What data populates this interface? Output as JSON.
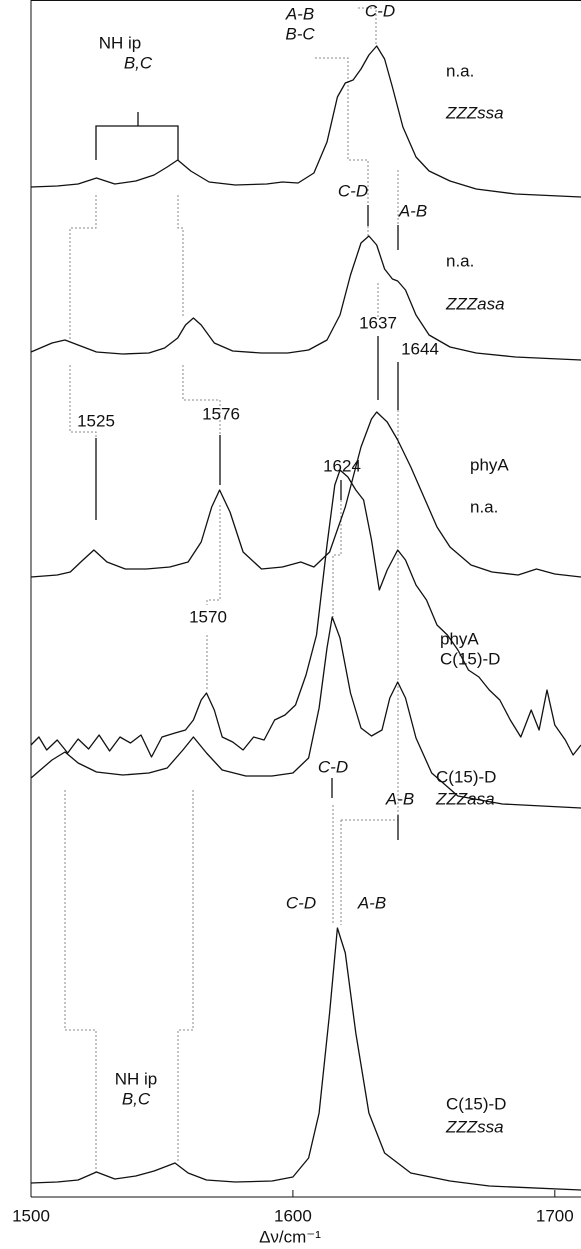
{
  "chart_data": {
    "type": "line",
    "x_label": "Δν/cm⁻¹",
    "xlim": [
      1500,
      1710
    ],
    "xticks": [
      1500,
      1600,
      1700
    ],
    "color": "#111111",
    "series": [
      {
        "labels": [
          "n.a.",
          "ZZZssa"
        ],
        "x": [
          1500,
          1510,
          1518,
          1525,
          1532,
          1540,
          1547,
          1552,
          1556,
          1561,
          1568,
          1578,
          1590,
          1596,
          1602,
          1608,
          1613,
          1617,
          1620,
          1623,
          1626,
          1629,
          1632,
          1635,
          1638,
          1642,
          1647,
          1652,
          1660,
          1670,
          1685,
          1710
        ],
        "values": [
          0,
          1,
          3,
          9,
          3,
          6,
          12,
          20,
          27,
          16,
          5,
          2,
          3,
          5,
          4,
          14,
          45,
          90,
          104,
          107,
          118,
          132,
          141,
          128,
          100,
          60,
          30,
          16,
          6,
          -2,
          -7,
          -10
        ]
      },
      {
        "labels": [
          "n.a.",
          "ZZZasa"
        ],
        "x": [
          1500,
          1508,
          1513,
          1518,
          1525,
          1535,
          1545,
          1551,
          1556,
          1559,
          1562,
          1565,
          1570,
          1577,
          1588,
          1598,
          1606,
          1613,
          1618,
          1622,
          1626,
          1629,
          1632,
          1635,
          1638,
          1640,
          1643,
          1647,
          1652,
          1660,
          1670,
          1685,
          1710
        ],
        "values": [
          3,
          12,
          15,
          10,
          3,
          1,
          2,
          7,
          17,
          30,
          37,
          30,
          12,
          4,
          2,
          2,
          5,
          15,
          40,
          80,
          112,
          119,
          110,
          86,
          76,
          74,
          65,
          40,
          20,
          8,
          2,
          -2,
          -5
        ]
      },
      {
        "labels": [
          "phyA",
          "n.a."
        ],
        "x": [
          1500,
          1510,
          1515,
          1519,
          1524,
          1529,
          1536,
          1544,
          1553,
          1560,
          1565,
          1569,
          1572,
          1576,
          1581,
          1588,
          1596,
          1603,
          1608,
          1614,
          1620,
          1626,
          1630,
          1632,
          1636,
          1640,
          1645,
          1650,
          1655,
          1660,
          1668,
          1676,
          1686,
          1693,
          1700,
          1710
        ],
        "values": [
          0,
          2,
          5,
          15,
          27,
          15,
          8,
          8,
          10,
          15,
          35,
          70,
          87,
          65,
          25,
          8,
          10,
          15,
          10,
          25,
          70,
          130,
          158,
          165,
          155,
          137,
          110,
          80,
          50,
          30,
          12,
          5,
          2,
          8,
          3,
          0
        ]
      },
      {
        "labels": [
          "phyA",
          "C(15)-D"
        ],
        "x": [
          1500,
          1503,
          1506,
          1510,
          1514,
          1518,
          1522,
          1526,
          1530,
          1534,
          1538,
          1542,
          1546,
          1550,
          1555,
          1559,
          1562,
          1565,
          1567,
          1570,
          1573,
          1577,
          1581,
          1585,
          1589,
          1593,
          1597,
          1601,
          1605,
          1609,
          1613,
          1616,
          1618,
          1621,
          1624,
          1627,
          1630,
          1633,
          1636,
          1640,
          1643,
          1647,
          1651,
          1655,
          1659,
          1663,
          1667,
          1671,
          1675,
          1679,
          1683,
          1687,
          1691,
          1694,
          1697,
          1700,
          1704,
          1707,
          1710
        ],
        "values": [
          0,
          8,
          -5,
          5,
          -8,
          6,
          -4,
          10,
          -6,
          8,
          2,
          10,
          -12,
          8,
          12,
          15,
          25,
          45,
          52,
          35,
          8,
          3,
          -5,
          8,
          5,
          25,
          30,
          40,
          70,
          110,
          200,
          260,
          275,
          268,
          255,
          245,
          205,
          155,
          175,
          195,
          185,
          160,
          145,
          120,
          110,
          95,
          75,
          68,
          55,
          45,
          25,
          8,
          35,
          15,
          55,
          20,
          5,
          -10,
          0
        ]
      },
      {
        "labels": [
          "C(15)-D",
          "ZZZasa"
        ],
        "x": [
          1500,
          1508,
          1513,
          1518,
          1525,
          1535,
          1545,
          1552,
          1558,
          1562,
          1567,
          1573,
          1582,
          1592,
          1600,
          1606,
          1610,
          1613,
          1615,
          1618,
          1622,
          1626,
          1630,
          1634,
          1637,
          1640,
          1643,
          1647,
          1653,
          1663,
          1680,
          1710
        ],
        "values": [
          0,
          18,
          26,
          15,
          6,
          3,
          5,
          10,
          28,
          41,
          25,
          8,
          2,
          2,
          5,
          20,
          70,
          130,
          161,
          140,
          85,
          50,
          42,
          48,
          80,
          96,
          80,
          40,
          5,
          -18,
          -26,
          -30
        ]
      },
      {
        "labels": [
          "C(15)-D",
          "ZZZssa"
        ],
        "x": [
          1500,
          1510,
          1518,
          1525,
          1532,
          1540,
          1547,
          1551,
          1555,
          1560,
          1567,
          1578,
          1592,
          1600,
          1606,
          1610,
          1614,
          1617,
          1620,
          1624,
          1629,
          1635,
          1645,
          1660,
          1675,
          1710
        ],
        "values": [
          0,
          1,
          3,
          11,
          4,
          7,
          12,
          16,
          20,
          10,
          3,
          1,
          2,
          6,
          25,
          70,
          170,
          255,
          230,
          150,
          70,
          30,
          10,
          2,
          -3,
          -7
        ]
      }
    ],
    "annotations": [
      "NH ip",
      "B,C",
      "A-B",
      "B-C",
      "C-D",
      "C-D",
      "A-B",
      1637,
      1644,
      1525,
      1576,
      1624,
      1570,
      "C-D",
      "A-B",
      "C-D",
      "A-B",
      "NH ip",
      "B,C"
    ]
  }
}
